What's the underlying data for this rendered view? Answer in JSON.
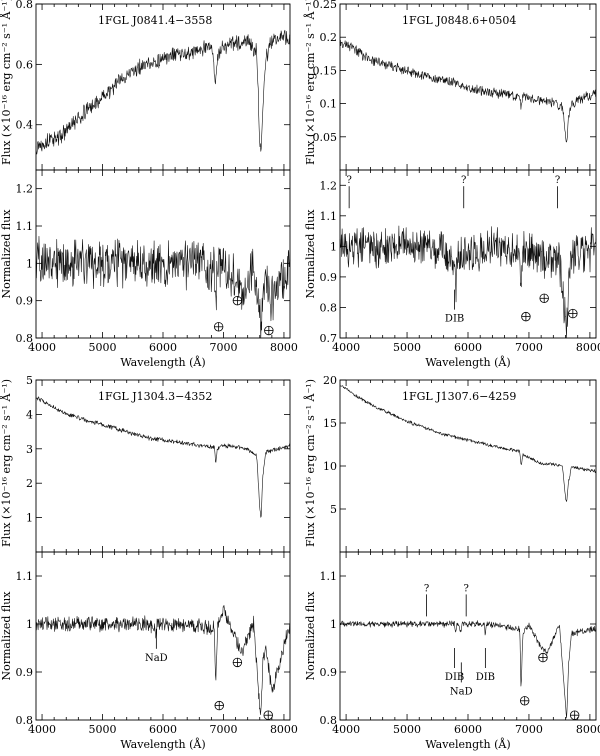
{
  "chart_data": [
    {
      "type": "line",
      "title": "1FGL J0841.4−3558",
      "ylabel": "Flux (×10⁻¹⁶ erg cm⁻² s⁻¹ Å⁻¹)",
      "xlim": [
        3900,
        8100
      ],
      "ylim": [
        0.25,
        0.8
      ],
      "yticks": [
        0.4,
        0.6,
        0.8
      ],
      "series": [
        {
          "x": [
            3900,
            4000,
            4300,
            4500,
            4700,
            5000,
            5300,
            5600,
            5900,
            6200,
            6500,
            6800,
            6850,
            6870,
            6900,
            7000,
            7200,
            7400,
            7550,
            7600,
            7620,
            7650,
            7700,
            7800,
            8000,
            8100
          ],
          "y": [
            0.33,
            0.34,
            0.36,
            0.4,
            0.44,
            0.49,
            0.55,
            0.59,
            0.61,
            0.63,
            0.64,
            0.66,
            0.59,
            0.52,
            0.63,
            0.66,
            0.67,
            0.68,
            0.64,
            0.35,
            0.28,
            0.46,
            0.62,
            0.68,
            0.7,
            0.68
          ],
          "noise": 0.02
        }
      ]
    },
    {
      "type": "line",
      "title": "1FGL J0848.6+0504",
      "ylabel": "Flux (×10⁻¹⁶ erg cm⁻² s⁻¹ Å⁻¹)",
      "xlim": [
        3900,
        8100
      ],
      "ylim": [
        0.0,
        0.25
      ],
      "yticks": [
        0.05,
        0.1,
        0.15,
        0.2,
        0.25
      ],
      "series": [
        {
          "x": [
            3900,
            4000,
            4300,
            4600,
            5000,
            5400,
            5800,
            6200,
            6600,
            6850,
            6870,
            6900,
            7000,
            7200,
            7400,
            7550,
            7600,
            7620,
            7650,
            7700,
            7900,
            8100
          ],
          "y": [
            0.19,
            0.19,
            0.17,
            0.16,
            0.15,
            0.14,
            0.13,
            0.12,
            0.115,
            0.11,
            0.09,
            0.11,
            0.11,
            0.105,
            0.1,
            0.095,
            0.05,
            0.04,
            0.08,
            0.1,
            0.11,
            0.115
          ],
          "noise": 0.006
        }
      ]
    },
    {
      "type": "line",
      "xlabel": "Wavelength (Å)",
      "ylabel": "Normalized flux",
      "xlim": [
        3900,
        8100
      ],
      "ylim": [
        0.8,
        1.25
      ],
      "yticks": [
        0.8,
        0.9,
        1,
        1.1,
        1.2
      ],
      "xticks": [
        4000,
        5000,
        6000,
        7000,
        8000
      ],
      "series": [
        {
          "x": [
            3900,
            4500,
            5500,
            6500,
            6850,
            6870,
            6900,
            7200,
            7300,
            7500,
            7600,
            7620,
            7650,
            7700,
            7800,
            8100
          ],
          "y": [
            1.0,
            1.0,
            1.0,
            1.0,
            0.99,
            0.89,
            0.99,
            0.97,
            0.93,
            0.99,
            0.86,
            0.8,
            0.92,
            0.96,
            0.9,
            1.0
          ],
          "noise": 0.05
        }
      ],
      "markers": [
        {
          "label": "⊕",
          "x": 6920,
          "y": 0.83
        },
        {
          "label": "⊕",
          "x": 7230,
          "y": 0.9
        },
        {
          "label": "⊕",
          "x": 7750,
          "y": 0.82
        }
      ]
    },
    {
      "type": "line",
      "xlabel": "Wavelength (Å)",
      "ylabel": "Normalized flux",
      "xlim": [
        3900,
        8100
      ],
      "ylim": [
        0.7,
        1.25
      ],
      "yticks": [
        0.7,
        0.8,
        0.9,
        1,
        1.1,
        1.2
      ],
      "xticks": [
        4000,
        5000,
        6000,
        7000,
        8000
      ],
      "series": [
        {
          "x": [
            3900,
            4500,
            5500,
            5780,
            5800,
            5820,
            6500,
            6850,
            6870,
            6900,
            7200,
            7500,
            7600,
            7620,
            7650,
            7700,
            8100
          ],
          "y": [
            1.0,
            1.0,
            1.0,
            0.96,
            0.86,
            0.96,
            1.0,
            0.98,
            0.9,
            0.99,
            0.96,
            0.96,
            0.75,
            0.72,
            0.9,
            0.96,
            1.0
          ],
          "noise": 0.05
        }
      ],
      "markers": [
        {
          "label": "?",
          "x": 4050,
          "y": 1.21
        },
        {
          "label": "?",
          "x": 5930,
          "y": 1.21
        },
        {
          "label": "?",
          "x": 7470,
          "y": 1.21
        },
        {
          "label": "DIB",
          "x": 5780,
          "y": 0.78
        },
        {
          "label": "⊕",
          "x": 6950,
          "y": 0.77
        },
        {
          "label": "⊕",
          "x": 7250,
          "y": 0.83
        },
        {
          "label": "⊕",
          "x": 7720,
          "y": 0.78
        }
      ]
    },
    {
      "type": "line",
      "title": "1FGL J1304.3−4352",
      "ylabel": "Flux (×10⁻¹⁶ erg cm⁻² s⁻¹ Å⁻¹)",
      "xlim": [
        3900,
        8100
      ],
      "ylim": [
        0.0,
        5.0
      ],
      "yticks": [
        1,
        2,
        3,
        4,
        5
      ],
      "series": [
        {
          "x": [
            3900,
            4000,
            4300,
            4600,
            5000,
            5400,
            5800,
            6200,
            6600,
            6850,
            6870,
            6900,
            7000,
            7200,
            7400,
            7550,
            7600,
            7620,
            7650,
            7700,
            7900,
            8100
          ],
          "y": [
            4.5,
            4.4,
            4.1,
            3.9,
            3.7,
            3.5,
            3.3,
            3.2,
            3.1,
            3.05,
            2.6,
            3.0,
            3.1,
            3.05,
            3.0,
            2.8,
            1.3,
            0.9,
            2.2,
            2.9,
            3.0,
            3.1
          ],
          "noise": 0.05
        }
      ]
    },
    {
      "type": "line",
      "title": "1FGL J1307.6−4259",
      "ylabel": "Flux (×10⁻¹⁶ erg cm⁻² s⁻¹ Å⁻¹)",
      "xlim": [
        3900,
        8100
      ],
      "ylim": [
        0.0,
        20.0
      ],
      "yticks": [
        5,
        10,
        15,
        20
      ],
      "series": [
        {
          "x": [
            3900,
            4000,
            4200,
            4500,
            5000,
            5500,
            6000,
            6500,
            6850,
            6870,
            6900,
            7000,
            7200,
            7400,
            7550,
            7600,
            7620,
            7650,
            7700,
            7900,
            8100
          ],
          "y": [
            19.3,
            19.0,
            18.0,
            16.8,
            15.2,
            13.9,
            13.0,
            12.2,
            11.7,
            9.9,
            11.3,
            11.0,
            10.3,
            10.2,
            10.0,
            6.3,
            6.0,
            8.2,
            9.9,
            9.6,
            9.4
          ],
          "noise": 0.15
        }
      ]
    },
    {
      "type": "line",
      "xlabel": "Wavelength (Å)",
      "ylabel": "Normalized flux",
      "xlim": [
        3900,
        8100
      ],
      "ylim": [
        0.8,
        1.15
      ],
      "yticks": [
        0.8,
        0.9,
        1,
        1.1
      ],
      "xticks": [
        4000,
        5000,
        6000,
        7000,
        8000
      ],
      "series": [
        {
          "x": [
            3900,
            5000,
            5800,
            5890,
            5900,
            6500,
            6850,
            6870,
            6900,
            7000,
            7200,
            7300,
            7500,
            7600,
            7620,
            7650,
            7700,
            7800,
            8100
          ],
          "y": [
            1.0,
            1.0,
            1.0,
            0.98,
            1.0,
            1.0,
            0.99,
            0.88,
            0.99,
            1.03,
            0.97,
            0.94,
            1.0,
            0.83,
            0.81,
            0.93,
            0.95,
            0.86,
            1.0
          ],
          "noise": 0.012
        }
      ],
      "markers": [
        {
          "label": "NaD",
          "x": 5890,
          "y": 0.94
        },
        {
          "label": "⊕",
          "x": 6930,
          "y": 0.83
        },
        {
          "label": "⊕",
          "x": 7230,
          "y": 0.92
        },
        {
          "label": "⊕",
          "x": 7740,
          "y": 0.81
        }
      ]
    },
    {
      "type": "line",
      "xlabel": "Wavelength (Å)",
      "ylabel": "Normalized flux",
      "xlim": [
        3900,
        8100
      ],
      "ylim": [
        0.8,
        1.15
      ],
      "yticks": [
        0.8,
        0.9,
        1,
        1.1
      ],
      "xticks": [
        4000,
        5000,
        6000,
        7000,
        8000
      ],
      "series": [
        {
          "x": [
            3900,
            5000,
            5780,
            5800,
            5820,
            5890,
            5900,
            6270,
            6285,
            6300,
            6850,
            6870,
            6900,
            7000,
            7200,
            7300,
            7500,
            7600,
            7620,
            7650,
            7700,
            8100
          ],
          "y": [
            1.0,
            1.0,
            1.0,
            0.98,
            1.0,
            0.985,
            1.0,
            1.0,
            0.975,
            1.0,
            0.99,
            0.86,
            0.98,
            1.0,
            0.95,
            0.94,
            1.0,
            0.83,
            0.8,
            0.92,
            0.98,
            0.99
          ],
          "noise": 0.005
        }
      ],
      "markers": [
        {
          "label": "?",
          "x": 5320,
          "y": 1.07
        },
        {
          "label": "?",
          "x": 5970,
          "y": 1.07
        },
        {
          "label": "DIB",
          "x": 5780,
          "y": 0.9
        },
        {
          "label": "NaD",
          "x": 5890,
          "y": 0.87
        },
        {
          "label": "DIB",
          "x": 6285,
          "y": 0.9
        },
        {
          "label": "⊕",
          "x": 6930,
          "y": 0.84
        },
        {
          "label": "⊕",
          "x": 7230,
          "y": 0.93
        },
        {
          "label": "⊕",
          "x": 7750,
          "y": 0.81
        }
      ]
    }
  ]
}
